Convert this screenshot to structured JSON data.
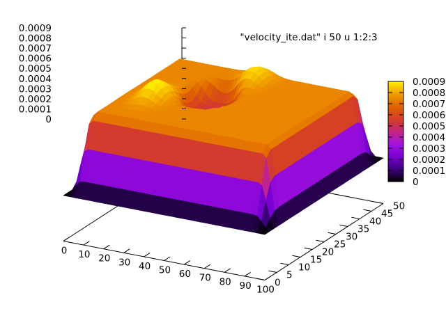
{
  "chart_data": {
    "type": "surface-3d",
    "title": "\"velocity_ite.dat\" i 50 u 1:2:3",
    "x_ticks": [
      "0",
      "10",
      "20",
      "30",
      "40",
      "50",
      "60",
      "70",
      "80",
      "90",
      "100"
    ],
    "y_ticks": [
      "0",
      "5",
      "10",
      "15",
      "20",
      "25",
      "30",
      "35",
      "40",
      "45",
      "50"
    ],
    "z_ticks": [
      "0",
      "0.0001",
      "0.0002",
      "0.0003",
      "0.0004",
      "0.0005",
      "0.0006",
      "0.0007",
      "0.0008",
      "0.0009"
    ],
    "colorbar_ticks": [
      "0",
      "0.0001",
      "0.0002",
      "0.0003",
      "0.0004",
      "0.0005",
      "0.0006",
      "0.0007",
      "0.0008",
      "0.0009"
    ],
    "xlim": [
      0,
      100
    ],
    "ylim": [
      0,
      50
    ],
    "zlim": [
      0,
      0.0009
    ],
    "palette": [
      "#000000",
      "#3c0078",
      "#7a00d2",
      "#a312e0",
      "#c4277f",
      "#d43d26",
      "#df6200",
      "#f2a000",
      "#fff000"
    ],
    "features": [
      {
        "shape": "plateau",
        "x_range": [
          2,
          98
        ],
        "y_range": [
          2,
          48
        ],
        "z": 0.00074
      },
      {
        "shape": "hump",
        "x": 22,
        "y": 20,
        "z": 0.00092
      },
      {
        "shape": "hump",
        "x": 50,
        "y": 38,
        "z": 0.00088
      },
      {
        "shape": "pit",
        "x": 40,
        "y": 28,
        "z": 0.0004
      },
      {
        "shape": "ring",
        "x": 40,
        "y": 28,
        "z": 0.00065
      }
    ]
  }
}
